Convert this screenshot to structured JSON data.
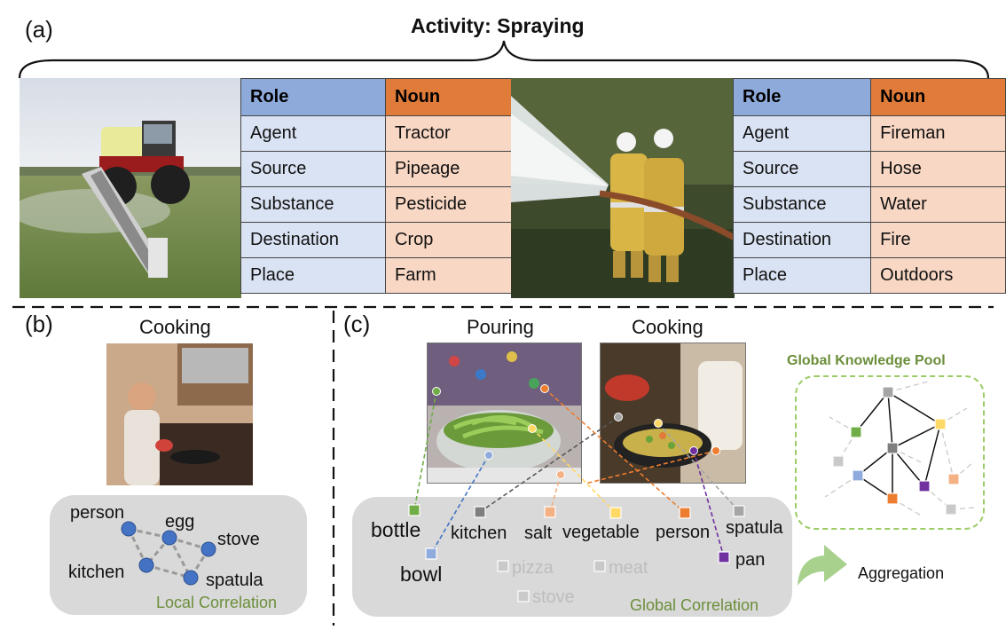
{
  "panel_a": {
    "label": "(a)",
    "title": "Activity: Spraying",
    "tables": [
      {
        "header": [
          "Role",
          "Noun"
        ],
        "rows": [
          [
            "Agent",
            "Tractor"
          ],
          [
            "Source",
            "Pipeage"
          ],
          [
            "Substance",
            "Pesticide"
          ],
          [
            "Destination",
            "Crop"
          ],
          [
            "Place",
            "Farm"
          ]
        ]
      },
      {
        "header": [
          "Role",
          "Noun"
        ],
        "rows": [
          [
            "Agent",
            "Fireman"
          ],
          [
            "Source",
            "Hose"
          ],
          [
            "Substance",
            "Water"
          ],
          [
            "Destination",
            "Fire"
          ],
          [
            "Place",
            "Outdoors"
          ]
        ]
      }
    ]
  },
  "panel_b": {
    "label": "(b)",
    "title": "Cooking",
    "nodes": [
      "person",
      "egg",
      "stove",
      "kitchen",
      "spatula"
    ],
    "caption": "Local Correlation"
  },
  "panel_c": {
    "label": "(c)",
    "image_titles": [
      "Pouring",
      "Cooking"
    ],
    "words": {
      "bottle": "bottle",
      "bowl": "bowl",
      "kitchen": "kitchen",
      "salt": "salt",
      "vegetable": "vegetable",
      "person": "person",
      "spatula": "spatula",
      "pan": "pan",
      "pizza": "pizza",
      "meat": "meat",
      "stove": "stove"
    },
    "caption": "Global Correlation",
    "pool_title": "Global Knowledge Pool",
    "aggregation": "Aggregation"
  },
  "colors": {
    "role_header": "#8eaadb",
    "noun_header": "#e07b39",
    "role_cell": "#dae3f3",
    "noun_cell": "#f8d7c4",
    "node_blue": "#4472c4",
    "caption_green": "#6b8e3a",
    "bottle": "#70ad47",
    "bowl": "#8faadc",
    "kitchen": "#7f7f7f",
    "salt": "#f4b183",
    "vegetable": "#ffd966",
    "person": "#ed7d31",
    "spatula": "#a5a5a5",
    "pan": "#7030a0",
    "faded": "#c9c9c9"
  }
}
